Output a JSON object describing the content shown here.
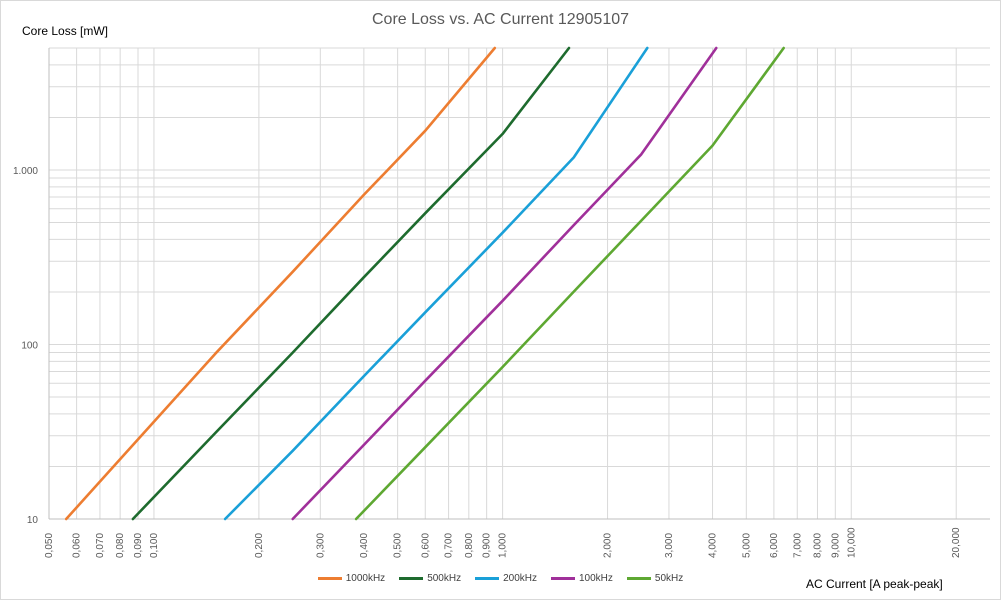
{
  "chart_data": {
    "type": "line",
    "title": "Core Loss vs. AC Current 12905107",
    "xlabel": "AC Current [A peak-peak]",
    "ylabel": "Core Loss [mW]",
    "xscale": "log",
    "yscale": "log",
    "xlim": [
      0.05,
      25
    ],
    "ylim": [
      10,
      5000
    ],
    "grid": true,
    "legend": "bottom",
    "x_ticks": [
      {
        "value": 0.05,
        "label": "0,050"
      },
      {
        "value": 0.06,
        "label": "0,060"
      },
      {
        "value": 0.07,
        "label": "0,070"
      },
      {
        "value": 0.08,
        "label": "0,080"
      },
      {
        "value": 0.09,
        "label": "0,090"
      },
      {
        "value": 0.1,
        "label": "0,100"
      },
      {
        "value": 0.2,
        "label": "0,200"
      },
      {
        "value": 0.3,
        "label": "0,300"
      },
      {
        "value": 0.4,
        "label": "0,400"
      },
      {
        "value": 0.5,
        "label": "0,500"
      },
      {
        "value": 0.6,
        "label": "0,600"
      },
      {
        "value": 0.7,
        "label": "0,700"
      },
      {
        "value": 0.8,
        "label": "0,800"
      },
      {
        "value": 0.9,
        "label": "0,900"
      },
      {
        "value": 1,
        "label": "1,000"
      },
      {
        "value": 2,
        "label": "2,000"
      },
      {
        "value": 3,
        "label": "3,000"
      },
      {
        "value": 4,
        "label": "4,000"
      },
      {
        "value": 5,
        "label": "5,000"
      },
      {
        "value": 6,
        "label": "6,000"
      },
      {
        "value": 7,
        "label": "7,000"
      },
      {
        "value": 8,
        "label": "8,000"
      },
      {
        "value": 9,
        "label": "9,000"
      },
      {
        "value": 10,
        "label": "10,000"
      },
      {
        "value": 20,
        "label": "20,000"
      }
    ],
    "y_ticks": [
      {
        "value": 10,
        "label": "10"
      },
      {
        "value": 100,
        "label": "100"
      },
      {
        "value": 1000,
        "label": "1.000"
      }
    ],
    "series": [
      {
        "name": "1000kHz",
        "color": "#ed7d31",
        "x": [
          0.056,
          0.09,
          0.15,
          0.25,
          0.4,
          0.6,
          0.95
        ],
        "y": [
          10,
          28.6,
          88.5,
          261,
          721,
          1680,
          5000
        ]
      },
      {
        "name": "500kHz",
        "color": "#1e6b2e",
        "x": [
          0.087,
          0.15,
          0.25,
          0.4,
          0.6,
          1.0,
          1.55
        ],
        "y": [
          10,
          31.1,
          89.8,
          243,
          565,
          1610,
          5000
        ]
      },
      {
        "name": "200kHz",
        "color": "#1aa0d8",
        "x": [
          0.16,
          0.25,
          0.4,
          0.6,
          1.0,
          1.6,
          2.6
        ],
        "y": [
          10,
          24.6,
          65.9,
          153,
          437,
          1180,
          5000
        ]
      },
      {
        "name": "100kHz",
        "color": "#a0309a",
        "x": [
          0.25,
          0.4,
          0.6,
          1.0,
          1.6,
          2.5,
          4.1
        ],
        "y": [
          10,
          26.6,
          62,
          178,
          483,
          1230,
          5000
        ]
      },
      {
        "name": "50kHz",
        "color": "#5ea832",
        "x": [
          0.38,
          0.6,
          1.0,
          1.6,
          2.5,
          4.0,
          6.4
        ],
        "y": [
          10,
          25.8,
          74.3,
          201,
          513,
          1380,
          5000
        ]
      }
    ]
  }
}
